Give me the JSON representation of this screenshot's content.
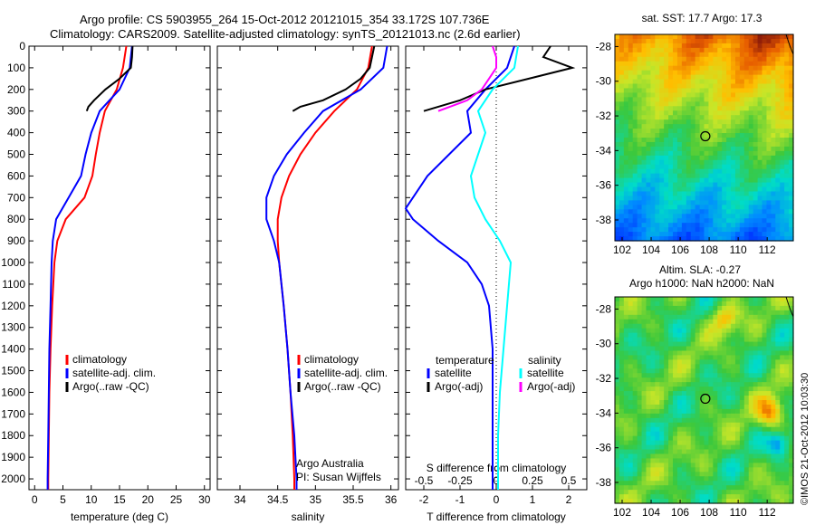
{
  "header": {
    "line1": "Argo profile: CS 5903955_264 15-Oct-2012 20121015_354 33.172S 107.736E",
    "line2": "Climatology: CARS2009. Satellite-adjusted climatology: synTS_20121013.nc (2.6d earlier)"
  },
  "colors": {
    "climatology": "#ff0000",
    "satellite": "#0000ff",
    "argo": "#000000",
    "sal_satellite": "#00ffff",
    "sal_argo": "#ff00ff"
  },
  "chart_data": [
    {
      "id": "temperature",
      "type": "line",
      "xlabel": "temperature (deg C)",
      "ylabel": "",
      "xlim": [
        -1,
        31
      ],
      "ylim": [
        2050,
        0
      ],
      "xticks": [
        0,
        5,
        10,
        15,
        20,
        25,
        30
      ],
      "yticks": [
        0,
        100,
        200,
        300,
        400,
        500,
        600,
        700,
        800,
        900,
        1000,
        1100,
        1200,
        1300,
        1400,
        1500,
        1600,
        1700,
        1800,
        1900,
        2000
      ],
      "legend": [
        "climatology",
        "satellite-adj. clim.",
        "Argo(..raw -QC)"
      ],
      "series": [
        {
          "name": "climatology",
          "color": "#ff0000",
          "y": [
            0,
            100,
            200,
            300,
            400,
            500,
            600,
            700,
            800,
            900,
            1000,
            1200,
            1400,
            1600,
            1800,
            2000,
            2050
          ],
          "x": [
            16.2,
            15.6,
            14.5,
            12.4,
            11.5,
            10.8,
            10.2,
            8.8,
            5.5,
            4.0,
            3.5,
            3.1,
            2.8,
            2.6,
            2.5,
            2.4,
            2.4
          ]
        },
        {
          "name": "satellite-adj. clim.",
          "color": "#0000ff",
          "y": [
            0,
            100,
            200,
            300,
            400,
            500,
            600,
            700,
            800,
            900,
            1000,
            1200,
            1400,
            1600,
            1800,
            2000,
            2050
          ],
          "x": [
            17.2,
            16.8,
            15.0,
            11.5,
            10.0,
            9.0,
            8.2,
            6.0,
            3.8,
            3.2,
            3.0,
            2.8,
            2.6,
            2.5,
            2.4,
            2.3,
            2.3
          ]
        },
        {
          "name": "Argo(..raw -QC)",
          "color": "#000000",
          "y": [
            0,
            50,
            100,
            150,
            200,
            250,
            280,
            300
          ],
          "x": [
            17.3,
            17.2,
            17.0,
            15.0,
            12.5,
            10.5,
            9.5,
            9.2
          ]
        }
      ]
    },
    {
      "id": "salinity",
      "type": "line",
      "xlabel": "salinity",
      "ylabel": "",
      "xlim": [
        33.7,
        36.1
      ],
      "ylim": [
        2050,
        0
      ],
      "xticks": [
        34,
        34.5,
        35,
        35.5,
        36
      ],
      "legend": [
        "climatology",
        "satellite-adj. clim.",
        "Argo(..raw -QC)"
      ],
      "annotation": [
        "Argo Australia",
        "PI: Susan Wijffels"
      ],
      "series": [
        {
          "name": "climatology",
          "color": "#ff0000",
          "y": [
            0,
            100,
            200,
            300,
            400,
            500,
            600,
            700,
            800,
            900,
            1000,
            1200,
            1400,
            1600,
            1800,
            2000,
            2050
          ],
          "x": [
            35.75,
            35.7,
            35.55,
            35.25,
            35.0,
            34.8,
            34.65,
            34.55,
            34.5,
            34.5,
            34.52,
            34.58,
            34.63,
            34.67,
            34.7,
            34.72,
            34.72
          ]
        },
        {
          "name": "satellite-adj. clim.",
          "color": "#0000ff",
          "y": [
            0,
            100,
            200,
            300,
            400,
            500,
            600,
            700,
            800,
            900,
            1000,
            1200,
            1400,
            1600,
            1800,
            2000,
            2050
          ],
          "x": [
            35.95,
            35.9,
            35.6,
            35.1,
            34.85,
            34.62,
            34.45,
            34.35,
            34.35,
            34.45,
            34.52,
            34.58,
            34.63,
            34.67,
            34.72,
            34.75,
            34.75
          ]
        },
        {
          "name": "Argo(..raw -QC)",
          "color": "#000000",
          "y": [
            0,
            50,
            100,
            150,
            200,
            250,
            280,
            300
          ],
          "x": [
            35.78,
            35.75,
            35.72,
            35.6,
            35.4,
            35.1,
            34.8,
            34.7
          ]
        }
      ]
    },
    {
      "id": "difference",
      "type": "line",
      "xlabel": "T difference from climatology",
      "x2label": "S difference from climatology",
      "xlim": [
        -2.5,
        2.5
      ],
      "ylim": [
        2050,
        0
      ],
      "xticks": [
        -2,
        -1,
        0,
        1,
        2
      ],
      "x2ticks": [
        "-0.5",
        "-0.25",
        "0",
        "0.25",
        "0.5"
      ],
      "legend_temperature_title": "temperature",
      "legend_salinity_title": "salinity",
      "legend_temperature": [
        "satellite",
        "Argo(-adj)"
      ],
      "legend_salinity": [
        "satellite",
        "Argo(-adj)"
      ],
      "series": [
        {
          "name": "temperature satellite",
          "color": "#0000ff",
          "y": [
            0,
            100,
            200,
            300,
            400,
            500,
            600,
            700,
            750,
            800,
            900,
            1000,
            1100,
            1200,
            1400,
            1600,
            1800,
            2000,
            2050
          ],
          "x": [
            0.5,
            0.3,
            -0.3,
            -0.8,
            -0.7,
            -1.3,
            -1.9,
            -2.3,
            -2.5,
            -2.3,
            -1.6,
            -0.8,
            -0.4,
            -0.2,
            -0.1,
            -0.1,
            -0.1,
            -0.1,
            -0.1
          ]
        },
        {
          "name": "temperature Argo(-adj)",
          "color": "#000000",
          "y": [
            0,
            50,
            100,
            150,
            200,
            250,
            300
          ],
          "x": [
            1.5,
            1.3,
            2.1,
            0.9,
            -0.3,
            -1.0,
            -2.0
          ]
        },
        {
          "name": "salinity satellite",
          "color": "#00ffff",
          "y": [
            0,
            100,
            200,
            300,
            400,
            500,
            600,
            700,
            800,
            900,
            1000,
            1200,
            1400,
            1600,
            1800,
            2000,
            2050
          ],
          "x": [
            0.6,
            0.5,
            -0.1,
            -0.5,
            -0.3,
            -0.5,
            -0.7,
            -0.6,
            -0.3,
            0.1,
            0.4,
            0.3,
            0.2,
            0.1,
            0.05,
            0.05,
            0.05
          ]
        },
        {
          "name": "salinity Argo(-adj)",
          "color": "#ff00ff",
          "y": [
            0,
            50,
            100,
            150,
            200,
            250,
            300
          ],
          "x": [
            -0.1,
            0.0,
            0.0,
            -0.2,
            -0.4,
            -0.8,
            -1.6
          ]
        }
      ]
    },
    {
      "id": "sst-map",
      "type": "heatmap",
      "title": "sat. SST: 17.7  Argo: 17.3",
      "xlim": [
        101.5,
        113.8
      ],
      "ylim": [
        -39.2,
        -27.3
      ],
      "xticks": [
        102,
        104,
        106,
        108,
        110,
        112
      ],
      "yticks": [
        -28,
        -30,
        -32,
        -34,
        -36,
        -38
      ],
      "marker": {
        "lon": 107.736,
        "lat": -33.172
      }
    },
    {
      "id": "sla-map",
      "type": "heatmap",
      "title": "Altim. SLA: -0.27",
      "subtitle": "Argo h1000: NaN  h2000: NaN",
      "xlim": [
        101.5,
        113.8
      ],
      "ylim": [
        -39.2,
        -27.3
      ],
      "xticks": [
        102,
        104,
        106,
        108,
        110,
        112
      ],
      "yticks": [
        -28,
        -30,
        -32,
        -34,
        -36,
        -38
      ],
      "marker": {
        "lon": 107.736,
        "lat": -33.172
      }
    }
  ],
  "footer": {
    "stamp": "©IMOS 21-Oct-2012 10:03:30"
  }
}
